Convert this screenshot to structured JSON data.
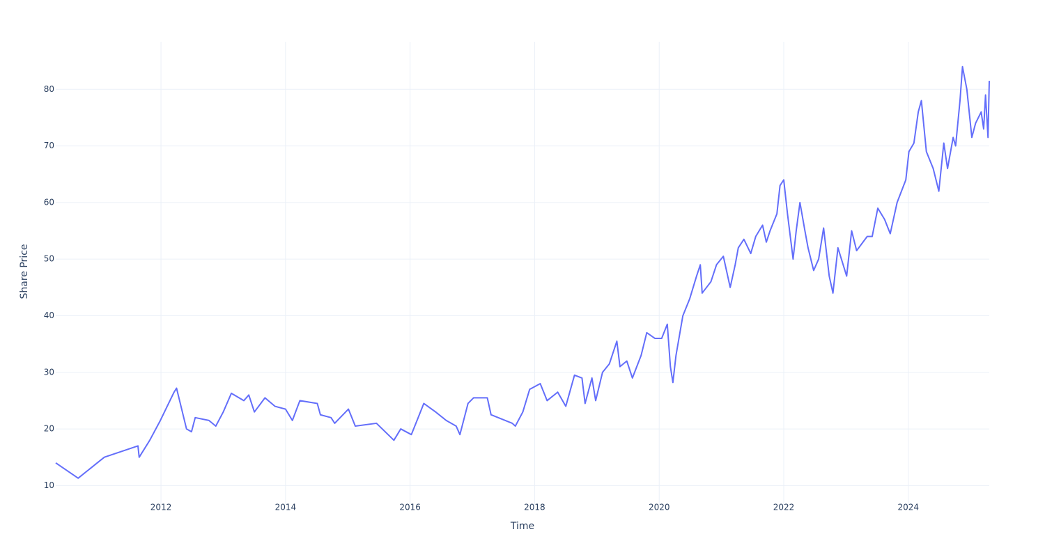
{
  "chart_data": {
    "type": "line",
    "x_label": "Time",
    "y_label": "Share Price",
    "xlim": [
      2010.31,
      2025.3
    ],
    "ylim": [
      6.6,
      88.4
    ],
    "xticks": [
      2012,
      2014,
      2016,
      2018,
      2020,
      2022,
      2024
    ],
    "yticks": [
      10,
      20,
      30,
      40,
      50,
      60,
      70,
      80
    ],
    "grid": true,
    "series": [
      {
        "color": "#636efa",
        "x": [
          2010.31,
          2010.67,
          2011.09,
          2011.63,
          2011.65,
          2011.82,
          2011.99,
          2012.21,
          2012.25,
          2012.41,
          2012.49,
          2012.55,
          2012.77,
          2012.88,
          2013.0,
          2013.13,
          2013.33,
          2013.41,
          2013.5,
          2013.67,
          2013.83,
          2014.0,
          2014.11,
          2014.23,
          2014.51,
          2014.56,
          2014.73,
          2014.79,
          2015.01,
          2015.12,
          2015.46,
          2015.74,
          2015.85,
          2016.02,
          2016.13,
          2016.22,
          2016.41,
          2016.58,
          2016.74,
          2016.8,
          2016.93,
          2017.02,
          2017.24,
          2017.3,
          2017.64,
          2017.69,
          2017.81,
          2017.92,
          2018.09,
          2018.2,
          2018.37,
          2018.5,
          2018.64,
          2018.76,
          2018.81,
          2018.92,
          2018.98,
          2019.09,
          2019.2,
          2019.32,
          2019.37,
          2019.48,
          2019.57,
          2019.71,
          2019.8,
          2019.93,
          2020.04,
          2020.13,
          2020.18,
          2020.22,
          2020.27,
          2020.38,
          2020.49,
          2020.6,
          2020.66,
          2020.69,
          2020.83,
          2020.92,
          2021.03,
          2021.14,
          2021.22,
          2021.27,
          2021.36,
          2021.47,
          2021.55,
          2021.66,
          2021.72,
          2021.78,
          2021.89,
          2021.94,
          2022.0,
          2022.06,
          2022.15,
          2022.2,
          2022.26,
          2022.34,
          2022.39,
          2022.48,
          2022.56,
          2022.64,
          2022.73,
          2022.79,
          2022.87,
          2023.01,
          2023.09,
          2023.17,
          2023.34,
          2023.42,
          2023.51,
          2023.62,
          2023.71,
          2023.82,
          2023.96,
          2024.01,
          2024.09,
          2024.16,
          2024.21,
          2024.29,
          2024.4,
          2024.49,
          2024.57,
          2024.63,
          2024.72,
          2024.76,
          2024.83,
          2024.87,
          2024.94,
          2025.02,
          2025.08,
          2025.17,
          2025.21,
          2025.24,
          2025.28,
          2025.3
        ],
        "values": [
          14,
          11.3,
          15,
          17,
          15,
          18,
          21.5,
          26.5,
          27.2,
          20,
          19.5,
          22,
          21.5,
          20.5,
          23,
          26.3,
          25,
          26,
          23,
          25.5,
          24,
          23.5,
          21.5,
          25,
          24.5,
          22.5,
          22,
          21,
          23.5,
          20.5,
          21,
          18,
          20,
          19,
          22,
          24.5,
          23,
          21.5,
          20.5,
          19,
          24.5,
          25.5,
          25.5,
          22.5,
          21,
          20.5,
          23,
          27,
          28,
          25,
          26.5,
          24,
          29.5,
          29,
          24.5,
          29,
          25,
          30,
          31.5,
          35.5,
          31,
          32,
          29,
          33,
          37,
          36,
          36,
          38.5,
          31,
          28.2,
          33,
          40,
          43,
          47,
          49,
          44,
          46,
          49,
          50.5,
          45,
          49,
          52,
          53.5,
          51,
          54,
          56,
          53,
          55,
          58,
          63,
          64,
          58,
          50,
          55,
          60,
          55,
          52,
          48,
          50,
          55.5,
          47,
          44,
          52,
          47,
          55,
          51.5,
          54,
          54,
          59,
          57,
          54.5,
          60,
          64,
          69,
          70.5,
          76,
          78,
          69,
          66,
          62,
          70.5,
          66,
          71.5,
          70,
          78,
          84,
          80,
          71.5,
          74,
          76,
          73,
          79,
          71.5,
          81.5
        ]
      }
    ]
  }
}
